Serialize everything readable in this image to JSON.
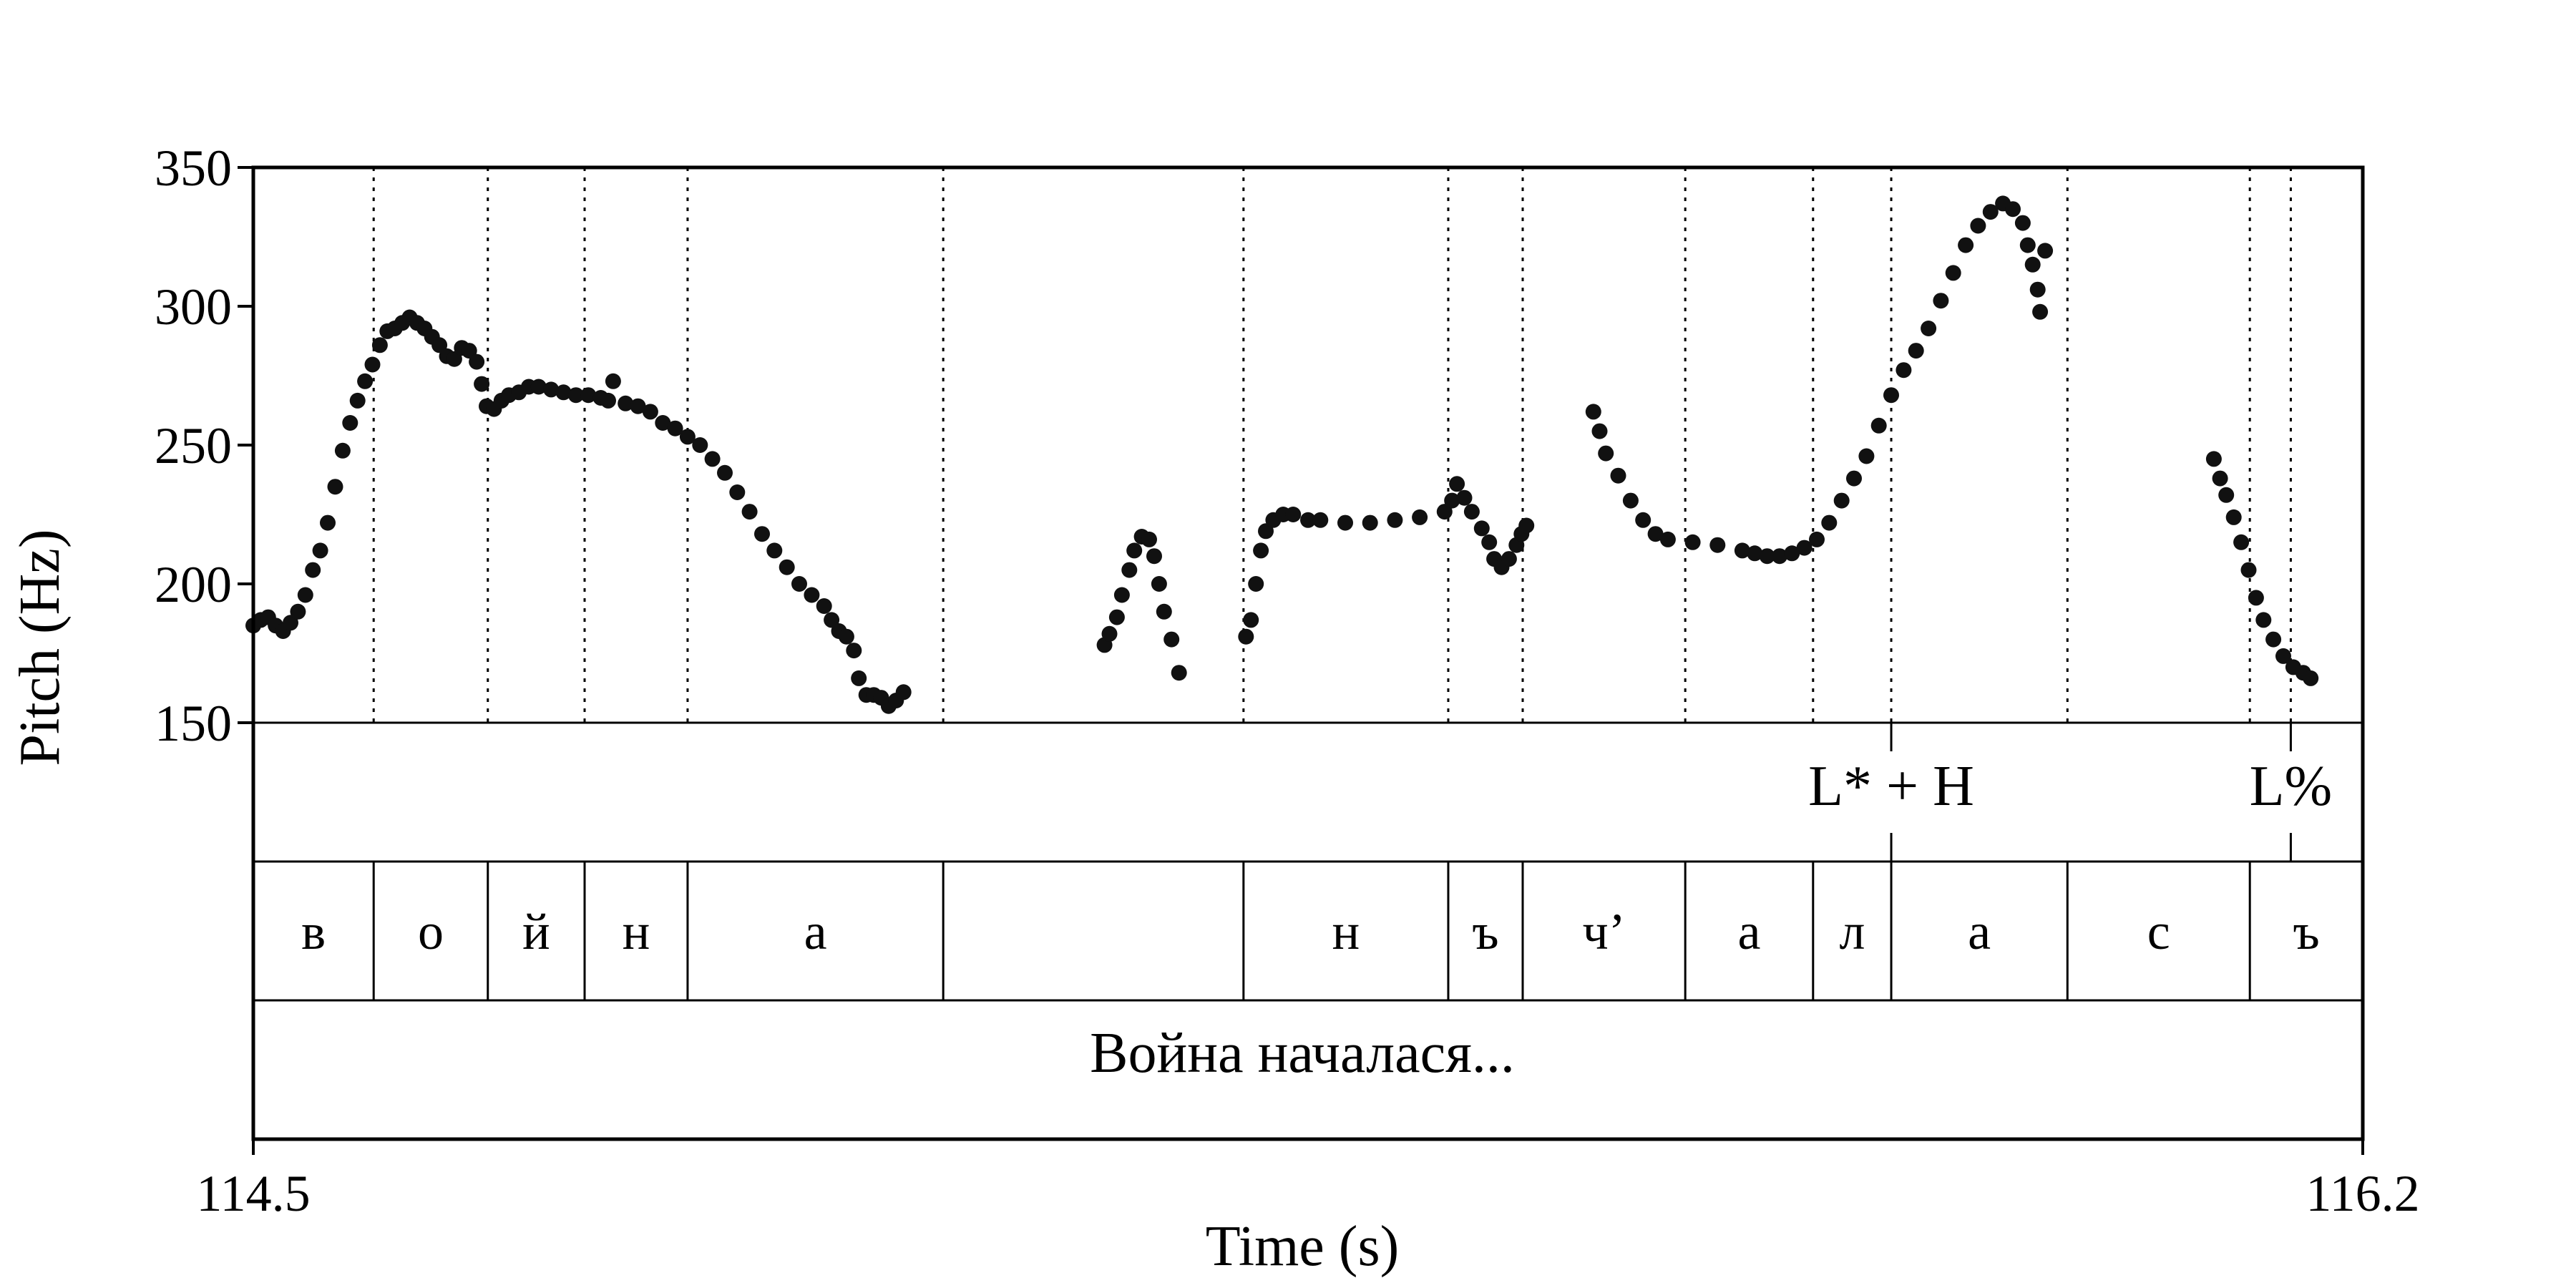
{
  "chart_data": {
    "type": "scatter",
    "xlabel": "Time (s)",
    "ylabel": "Pitch (Hz)",
    "xlim": [
      114.5,
      116.2
    ],
    "ylim": [
      150,
      350
    ],
    "xticks": [
      "114.5",
      "116.2"
    ],
    "yticks": [
      "150",
      "200",
      "250",
      "300",
      "350"
    ],
    "series": [
      {
        "points": [
          [
            114.5,
            185
          ],
          [
            114.506,
            187
          ],
          [
            114.512,
            188
          ],
          [
            114.518,
            185
          ],
          [
            114.524,
            183
          ],
          [
            114.53,
            186
          ],
          [
            114.536,
            190
          ],
          [
            114.542,
            196
          ],
          [
            114.548,
            205
          ],
          [
            114.554,
            212
          ],
          [
            114.56,
            222
          ],
          [
            114.566,
            235
          ],
          [
            114.572,
            248
          ],
          [
            114.578,
            258
          ],
          [
            114.584,
            266
          ],
          [
            114.59,
            273
          ],
          [
            114.596,
            279
          ],
          [
            114.602,
            286
          ],
          [
            114.608,
            291
          ],
          [
            114.614,
            292
          ],
          [
            114.62,
            294
          ],
          [
            114.626,
            296
          ],
          [
            114.632,
            294
          ],
          [
            114.638,
            292
          ],
          [
            114.644,
            289
          ],
          [
            114.65,
            286
          ],
          [
            114.656,
            282
          ],
          [
            114.662,
            281
          ],
          [
            114.668,
            285
          ],
          [
            114.674,
            284
          ],
          [
            114.68,
            280
          ],
          [
            114.684,
            272
          ],
          [
            114.688,
            264
          ],
          [
            114.694,
            263
          ],
          [
            114.7,
            266
          ],
          [
            114.706,
            268
          ],
          [
            114.714,
            269
          ],
          [
            114.722,
            271
          ],
          [
            114.73,
            271
          ],
          [
            114.74,
            270
          ],
          [
            114.75,
            269
          ],
          [
            114.76,
            268
          ],
          [
            114.77,
            268
          ],
          [
            114.78,
            267
          ],
          [
            114.786,
            266
          ],
          [
            114.79,
            273
          ],
          [
            114.8,
            265
          ],
          [
            114.81,
            264
          ],
          [
            114.82,
            262
          ],
          [
            114.83,
            258
          ],
          [
            114.84,
            256
          ],
          [
            114.85,
            253
          ],
          [
            114.86,
            250
          ],
          [
            114.87,
            245
          ],
          [
            114.88,
            240
          ],
          [
            114.89,
            233
          ],
          [
            114.9,
            226
          ],
          [
            114.91,
            218
          ],
          [
            114.92,
            212
          ],
          [
            114.93,
            206
          ],
          [
            114.94,
            200
          ],
          [
            114.95,
            196
          ],
          [
            114.96,
            192
          ],
          [
            114.966,
            187
          ],
          [
            114.972,
            183
          ],
          [
            114.978,
            181
          ],
          [
            114.984,
            176
          ],
          [
            114.988,
            166
          ],
          [
            114.994,
            160
          ],
          [
            115.0,
            160
          ],
          [
            115.006,
            159
          ],
          [
            115.012,
            156
          ],
          [
            115.018,
            158
          ],
          [
            115.024,
            161
          ],
          [
            115.186,
            178
          ],
          [
            115.19,
            182
          ],
          [
            115.196,
            188
          ],
          [
            115.2,
            196
          ],
          [
            115.206,
            205
          ],
          [
            115.21,
            212
          ],
          [
            115.216,
            217
          ],
          [
            115.222,
            216
          ],
          [
            115.226,
            210
          ],
          [
            115.23,
            200
          ],
          [
            115.234,
            190
          ],
          [
            115.24,
            180
          ],
          [
            115.246,
            168
          ],
          [
            115.3,
            181
          ],
          [
            115.304,
            187
          ],
          [
            115.308,
            200
          ],
          [
            115.312,
            212
          ],
          [
            115.316,
            219
          ],
          [
            115.322,
            223
          ],
          [
            115.33,
            225
          ],
          [
            115.338,
            225
          ],
          [
            115.35,
            223
          ],
          [
            115.36,
            223
          ],
          [
            115.38,
            222
          ],
          [
            115.4,
            222
          ],
          [
            115.42,
            223
          ],
          [
            115.44,
            224
          ],
          [
            115.46,
            226
          ],
          [
            115.466,
            230
          ],
          [
            115.47,
            236
          ],
          [
            115.476,
            231
          ],
          [
            115.482,
            226
          ],
          [
            115.49,
            220
          ],
          [
            115.496,
            215
          ],
          [
            115.5,
            209
          ],
          [
            115.506,
            206
          ],
          [
            115.512,
            209
          ],
          [
            115.518,
            214
          ],
          [
            115.522,
            218
          ],
          [
            115.526,
            221
          ],
          [
            115.58,
            262
          ],
          [
            115.585,
            255
          ],
          [
            115.59,
            247
          ],
          [
            115.6,
            239
          ],
          [
            115.61,
            230
          ],
          [
            115.62,
            223
          ],
          [
            115.63,
            218
          ],
          [
            115.64,
            216
          ],
          [
            115.66,
            215
          ],
          [
            115.68,
            214
          ],
          [
            115.7,
            212
          ],
          [
            115.71,
            211
          ],
          [
            115.72,
            210
          ],
          [
            115.73,
            210
          ],
          [
            115.74,
            211
          ],
          [
            115.75,
            213
          ],
          [
            115.76,
            216
          ],
          [
            115.77,
            222
          ],
          [
            115.78,
            230
          ],
          [
            115.79,
            238
          ],
          [
            115.8,
            246
          ],
          [
            115.81,
            257
          ],
          [
            115.82,
            268
          ],
          [
            115.83,
            277
          ],
          [
            115.84,
            284
          ],
          [
            115.85,
            292
          ],
          [
            115.86,
            302
          ],
          [
            115.87,
            312
          ],
          [
            115.88,
            322
          ],
          [
            115.89,
            329
          ],
          [
            115.9,
            334
          ],
          [
            115.91,
            337
          ],
          [
            115.918,
            335
          ],
          [
            115.926,
            330
          ],
          [
            115.93,
            322
          ],
          [
            115.934,
            315
          ],
          [
            115.938,
            306
          ],
          [
            115.94,
            298
          ],
          [
            115.944,
            320
          ],
          [
            116.08,
            245
          ],
          [
            116.085,
            238
          ],
          [
            116.09,
            232
          ],
          [
            116.096,
            224
          ],
          [
            116.102,
            215
          ],
          [
            116.108,
            205
          ],
          [
            116.114,
            195
          ],
          [
            116.12,
            187
          ],
          [
            116.128,
            180
          ],
          [
            116.136,
            174
          ],
          [
            116.144,
            170
          ],
          [
            116.152,
            168
          ],
          [
            116.158,
            166
          ]
        ]
      }
    ]
  },
  "tiers": {
    "boundaries": [
      114.597,
      114.689,
      114.767,
      114.85,
      115.056,
      115.298,
      115.463,
      115.523,
      115.654,
      115.757,
      115.82,
      115.962,
      116.109,
      116.142
    ],
    "tones": [
      {
        "t": 115.82,
        "label": "L* + H"
      },
      {
        "t": 116.142,
        "label": "L%"
      }
    ],
    "segments": [
      {
        "start": 114.5,
        "end": 114.597,
        "label": "в"
      },
      {
        "start": 114.597,
        "end": 114.689,
        "label": "о"
      },
      {
        "start": 114.689,
        "end": 114.767,
        "label": "й"
      },
      {
        "start": 114.767,
        "end": 114.85,
        "label": "н"
      },
      {
        "start": 114.85,
        "end": 115.056,
        "label": "а"
      },
      {
        "start": 115.056,
        "end": 115.298,
        "label": ""
      },
      {
        "start": 115.298,
        "end": 115.463,
        "label": "н"
      },
      {
        "start": 115.463,
        "end": 115.523,
        "label": "ъ"
      },
      {
        "start": 115.523,
        "end": 115.654,
        "label": "ч’"
      },
      {
        "start": 115.654,
        "end": 115.757,
        "label": "а"
      },
      {
        "start": 115.757,
        "end": 115.82,
        "label": "л"
      },
      {
        "start": 115.82,
        "end": 115.962,
        "label": "а"
      },
      {
        "start": 115.962,
        "end": 116.109,
        "label": "с"
      },
      {
        "start": 116.109,
        "end": 116.2,
        "label": "ъ"
      }
    ],
    "utterance": "Война началася..."
  }
}
